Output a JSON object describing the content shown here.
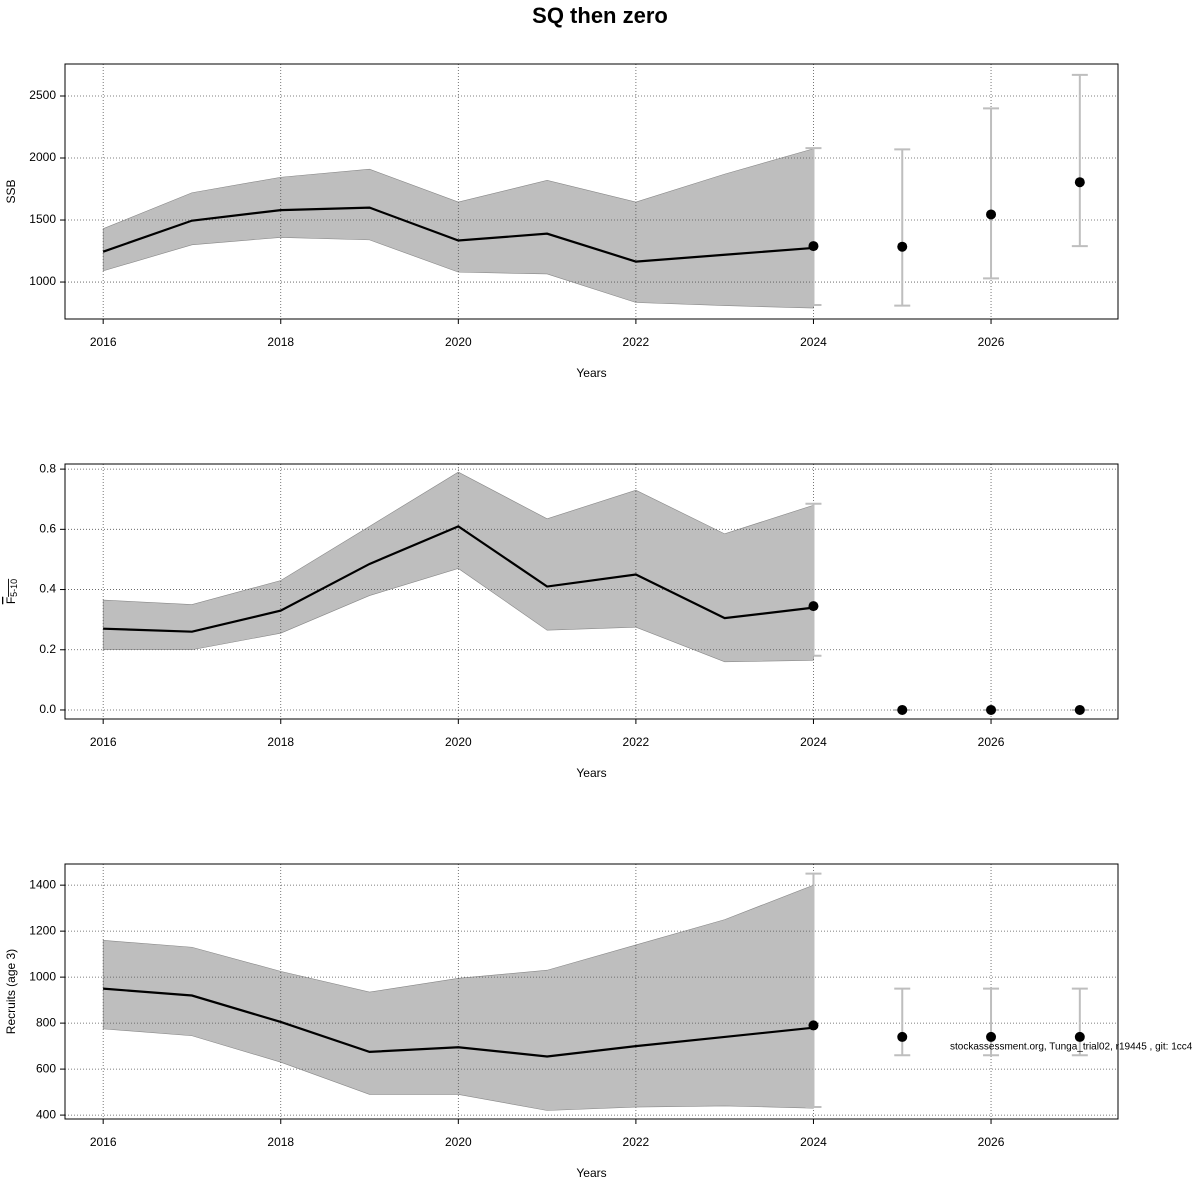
{
  "title": "SQ then zero",
  "footer": "stockassessment.org, Tunga_trial02, r19445 , git: 1cc4",
  "chart_data": [
    {
      "type": "line",
      "xlabel": "Years",
      "ylabel": "SSB",
      "xlim": [
        2015.57,
        2027.43
      ],
      "xticks": [
        2016,
        2018,
        2020,
        2022,
        2024,
        2026
      ],
      "ylim": [
        702,
        2758
      ],
      "yticks": [
        1000,
        1500,
        2000,
        2500
      ],
      "grid": true,
      "band_color": "#bebebe",
      "line_color": "#000000",
      "bar_color": "#bebebe",
      "estimate": {
        "x": [
          2016,
          2017,
          2018,
          2019,
          2020,
          2021,
          2022,
          2023,
          2024
        ],
        "values": [
          1245,
          1495,
          1580,
          1600,
          1335,
          1390,
          1165,
          1220,
          1275
        ],
        "lower": [
          1090,
          1300,
          1360,
          1340,
          1080,
          1065,
          835,
          810,
          790
        ],
        "upper": [
          1430,
          1720,
          1845,
          1910,
          1645,
          1820,
          1645,
          1870,
          2075
        ]
      },
      "forecast": {
        "x": [
          2024,
          2025,
          2026,
          2027
        ],
        "values": [
          1290,
          1285,
          1545,
          1805
        ],
        "lower": [
          815,
          810,
          1030,
          1290
        ],
        "upper": [
          2080,
          2070,
          2400,
          2670
        ]
      }
    },
    {
      "type": "line",
      "xlabel": "Years",
      "ylabel": "F",
      "ylabel_sub": "5-10",
      "xlim": [
        2015.57,
        2027.43
      ],
      "xticks": [
        2016,
        2018,
        2020,
        2022,
        2024,
        2026
      ],
      "ylim": [
        -0.03,
        0.817
      ],
      "yticks": [
        {
          "value": 0,
          "label": "0.0"
        },
        0.2,
        0.4,
        0.6,
        0.8
      ],
      "grid": true,
      "band_color": "#bebebe",
      "line_color": "#000000",
      "bar_color": "#bebebe",
      "estimate": {
        "x": [
          2016,
          2017,
          2018,
          2019,
          2020,
          2021,
          2022,
          2023,
          2024
        ],
        "values": [
          0.27,
          0.26,
          0.33,
          0.485,
          0.61,
          0.41,
          0.45,
          0.305,
          0.34
        ],
        "lower": [
          0.2,
          0.2,
          0.255,
          0.38,
          0.47,
          0.265,
          0.275,
          0.16,
          0.165
        ],
        "upper": [
          0.365,
          0.35,
          0.43,
          0.61,
          0.79,
          0.635,
          0.73,
          0.585,
          0.68
        ]
      },
      "forecast": {
        "x": [
          2024,
          2025,
          2026,
          2027
        ],
        "values": [
          0.345,
          0,
          0,
          0
        ],
        "lower": [
          0.18,
          0,
          0,
          0
        ],
        "upper": [
          0.685,
          0,
          0,
          0
        ]
      }
    },
    {
      "type": "line",
      "xlabel": "Years",
      "ylabel": "Recruits (age 3)",
      "xlim": [
        2015.57,
        2027.43
      ],
      "xticks": [
        2016,
        2018,
        2020,
        2022,
        2024,
        2026
      ],
      "ylim": [
        383,
        1492
      ],
      "yticks": [
        400,
        600,
        800,
        1000,
        1200,
        1400
      ],
      "grid": true,
      "band_color": "#bebebe",
      "line_color": "#000000",
      "bar_color": "#bebebe",
      "estimate": {
        "x": [
          2016,
          2017,
          2018,
          2019,
          2020,
          2021,
          2022,
          2023,
          2024
        ],
        "values": [
          950,
          920,
          805,
          675,
          695,
          655,
          700,
          740,
          780
        ],
        "lower": [
          775,
          745,
          630,
          490,
          490,
          420,
          435,
          440,
          430
        ],
        "upper": [
          1160,
          1130,
          1025,
          935,
          995,
          1030,
          1140,
          1250,
          1400
        ]
      },
      "forecast": {
        "x": [
          2024,
          2025,
          2026,
          2027
        ],
        "values": [
          790,
          740,
          740,
          740
        ],
        "lower": [
          435,
          660,
          660,
          660
        ],
        "upper": [
          1450,
          950,
          950,
          950
        ]
      }
    }
  ]
}
